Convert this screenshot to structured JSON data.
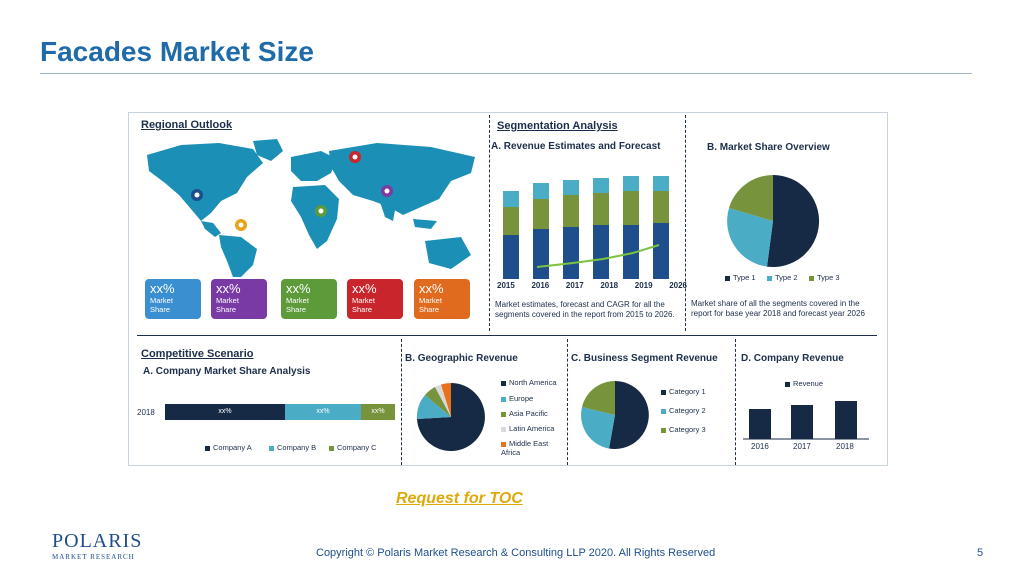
{
  "slide": {
    "title": "Facades Market  Size",
    "toc_link": "Request for TOC",
    "copyright": "Copyright © Polaris Market Research & Consulting LLP 2020. All Rights Reserved",
    "page_number": "5",
    "logo_line1": "POLARIS",
    "logo_line2": "MARKET RESEARCH"
  },
  "infographic": {
    "regional": {
      "heading": "Regional Outlook",
      "tiles": [
        {
          "value": "xx%",
          "label1": "Market",
          "label2": "Share",
          "color": "#3a8fd0"
        },
        {
          "value": "xx%",
          "label1": "Market",
          "label2": "Share",
          "color": "#7a3aa6"
        },
        {
          "value": "xx%",
          "label1": "Market",
          "label2": "Share",
          "color": "#5c9a3a"
        },
        {
          "value": "xx%",
          "label1": "Market",
          "label2": "Share",
          "color": "#c8262c"
        },
        {
          "value": "xx%",
          "label1": "Market",
          "label2": "Share",
          "color": "#e06a1e"
        }
      ]
    },
    "segmentation": {
      "heading": "Segmentation Analysis",
      "revenue": {
        "title": "A. Revenue Estimates and Forecast",
        "years": [
          "2015",
          "2016",
          "2017",
          "2018",
          "2019",
          "2026"
        ],
        "note": "Market estimates, forecast and CAGR for all the segments covered in the report from 2015 to 2026."
      },
      "share": {
        "title": "B. Market Share Overview",
        "legend": [
          "Type 1",
          "Type 2",
          "Type 3"
        ],
        "note": "Market share of all the segments covered in the report for base year 2018 and forecast year 2026"
      }
    },
    "competitive": {
      "heading": "Competitive Scenario",
      "subtitle": "A. Company Market Share Analysis",
      "year": "2018",
      "segments": [
        "xx%",
        "xx%",
        "xx%"
      ],
      "legend": [
        "Company  A",
        "Company B",
        "Company C"
      ]
    },
    "geographic": {
      "title": "B. Geographic Revenue",
      "legend": [
        "North America",
        "Europe",
        "Asia Pacific",
        "Latin America",
        "Middle East Africa"
      ]
    },
    "business": {
      "title": "C. Business Segment Revenue",
      "legend": [
        "Category 1",
        "Category 2",
        "Category 3"
      ]
    },
    "company": {
      "title": "D. Company Revenue",
      "legend": "Revenue",
      "years": [
        "2016",
        "2017",
        "2018"
      ]
    }
  },
  "colors": {
    "navy": "#172a45",
    "teal": "#4bacc6",
    "green": "#77933c",
    "title_blue": "#1f6aa8",
    "toc_gold": "#e0a80a"
  }
}
